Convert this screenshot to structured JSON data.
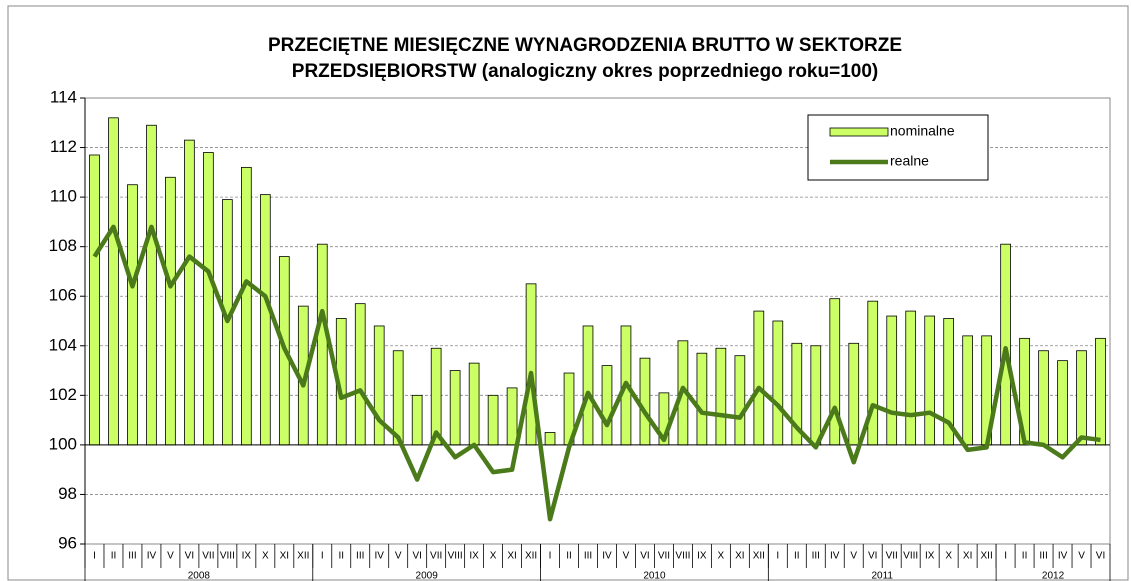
{
  "chart_data": {
    "type": "bar_line",
    "title": [
      "PRZECIĘTNE MIESIĘCZNE WYNAGRODZENIA BRUTTO W SEKTORZE",
      "PRZEDSIĘBIORSTW (analogiczny okres poprzedniego roku=100)"
    ],
    "categories": [
      "I",
      "II",
      "III",
      "IV",
      "V",
      "VI",
      "VII",
      "VIII",
      "IX",
      "X",
      "XI",
      "XII",
      "I",
      "II",
      "III",
      "IV",
      "V",
      "VI",
      "VII",
      "VIII",
      "IX",
      "X",
      "XI",
      "XII",
      "I",
      "II",
      "III",
      "IV",
      "V",
      "VI",
      "VII",
      "VIII",
      "IX",
      "X",
      "XI",
      "XII",
      "I",
      "II",
      "III",
      "IV",
      "V",
      "VI",
      "VII",
      "VIII",
      "IX",
      "X",
      "XI",
      "XII",
      "I",
      "II",
      "III",
      "IV",
      "V",
      "VI"
    ],
    "groups": [
      {
        "label": "2008",
        "count": 12
      },
      {
        "label": "2009",
        "count": 12
      },
      {
        "label": "2010",
        "count": 12
      },
      {
        "label": "2011",
        "count": 12
      },
      {
        "label": "2012",
        "count": 6
      }
    ],
    "series": [
      {
        "name": "nominalne",
        "kind": "bar",
        "color": "#ccff66",
        "values": [
          111.7,
          113.2,
          110.5,
          112.9,
          110.8,
          112.3,
          111.8,
          109.9,
          111.2,
          110.1,
          107.6,
          105.6,
          108.1,
          105.1,
          105.7,
          104.8,
          103.8,
          102.0,
          103.9,
          103.0,
          103.3,
          102.0,
          102.3,
          106.5,
          100.5,
          102.9,
          104.8,
          103.2,
          104.8,
          103.5,
          102.1,
          104.2,
          103.7,
          103.9,
          103.6,
          105.4,
          105.0,
          104.1,
          104.0,
          105.9,
          104.1,
          105.8,
          105.2,
          105.4,
          105.2,
          105.1,
          104.4,
          104.4,
          108.1,
          104.3,
          103.8,
          103.4,
          103.8,
          104.3
        ]
      },
      {
        "name": "realne",
        "kind": "line",
        "color": "#4a7a1a",
        "values": [
          107.6,
          108.8,
          106.4,
          108.8,
          106.4,
          107.6,
          107.0,
          105.0,
          106.6,
          106.0,
          103.9,
          102.4,
          105.4,
          101.9,
          102.2,
          101.0,
          100.3,
          98.6,
          100.5,
          99.5,
          100.0,
          98.9,
          99.0,
          102.9,
          97.0,
          99.9,
          102.1,
          100.8,
          102.5,
          101.3,
          100.2,
          102.3,
          101.3,
          101.2,
          101.1,
          102.3,
          101.6,
          100.7,
          99.9,
          101.5,
          99.3,
          101.6,
          101.3,
          101.2,
          101.3,
          100.9,
          99.8,
          99.9,
          103.9,
          100.1,
          100.0,
          99.5,
          100.3,
          100.2
        ]
      }
    ],
    "ylim": [
      96,
      114
    ],
    "yticks": [
      96,
      98,
      100,
      102,
      104,
      106,
      108,
      110,
      112,
      114
    ],
    "x_axis_crosses": 100,
    "grid": true,
    "legend": "top-right"
  }
}
